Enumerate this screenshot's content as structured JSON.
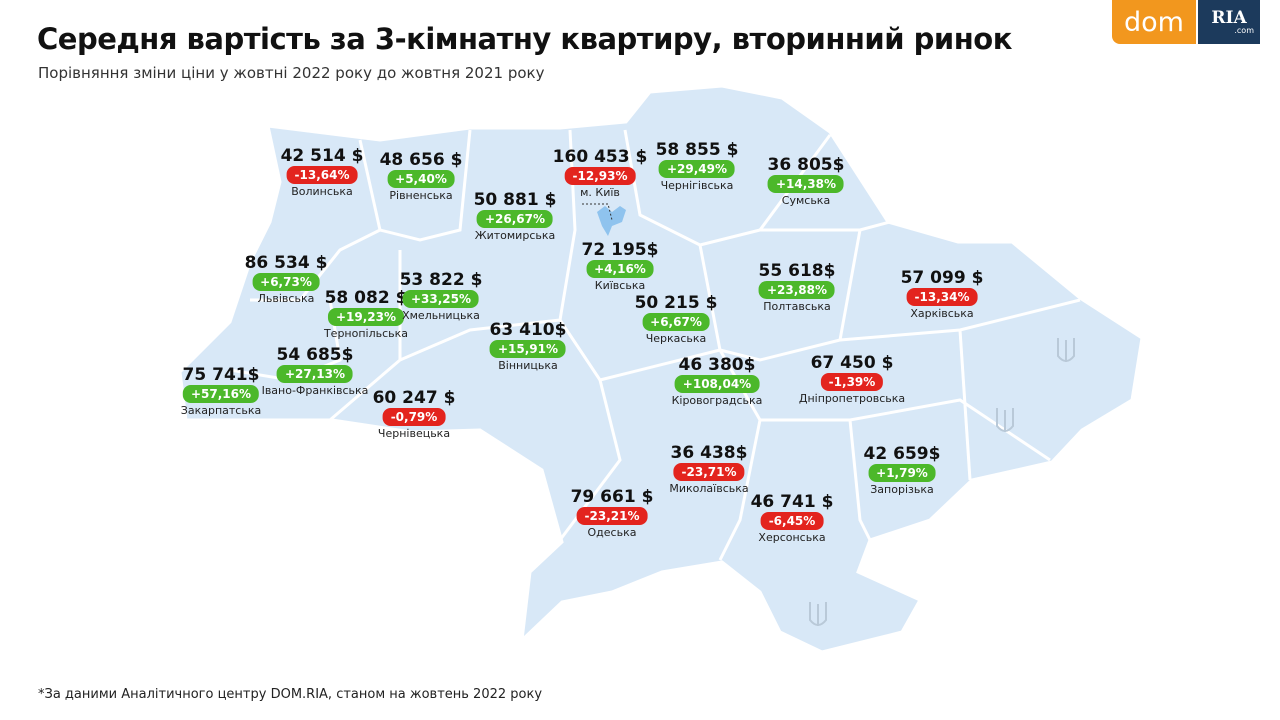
{
  "header": {
    "title": "Середня вартість за 3-кімнатну квартиру, вторинний ринок",
    "subtitle": "Порівняння зміни ціни у жовтні 2022 року до жовтня 2021 року"
  },
  "logo": {
    "left": "dom",
    "right": "RIA",
    "domain": ".com"
  },
  "footnote": "*За даними Аналітичного центру DOM.RIA, станом на жовтень 2022 року",
  "colors": {
    "map_fill": "#d8e8f7",
    "map_border": "#ffffff",
    "increase": "#4cb82a",
    "decrease": "#e3241e",
    "kyiv_city": "#8fc3ee"
  },
  "regions": [
    {
      "name": "Волинська",
      "price": "42 514 $",
      "change": "-13,64%",
      "trend": "down"
    },
    {
      "name": "Рівненська",
      "price": "48 656 $",
      "change": "+5,40%",
      "trend": "up"
    },
    {
      "name": "Житомирська",
      "price": "50 881 $",
      "change": "+26,67%",
      "trend": "up"
    },
    {
      "name": "м. Київ",
      "price": "160 453 $",
      "change": "-12,93%",
      "trend": "down"
    },
    {
      "name": "Чернігівська",
      "price": "58 855 $",
      "change": "+29,49%",
      "trend": "up"
    },
    {
      "name": "Сумська",
      "price": "36 805$",
      "change": "+14,38%",
      "trend": "up"
    },
    {
      "name": "Львівська",
      "price": "86 534 $",
      "change": "+6,73%",
      "trend": "up"
    },
    {
      "name": "Тернопільська",
      "price": "58 082 $",
      "change": "+19,23%",
      "trend": "up"
    },
    {
      "name": "Хмельницька",
      "price": "53 822 $",
      "change": "+33,25%",
      "trend": "up"
    },
    {
      "name": "Київська",
      "price": "72 195$",
      "change": "+4,16%",
      "trend": "up"
    },
    {
      "name": "Черкаська",
      "price": "50 215 $",
      "change": "+6,67%",
      "trend": "up"
    },
    {
      "name": "Полтавська",
      "price": "55 618$",
      "change": "+23,88%",
      "trend": "up"
    },
    {
      "name": "Харківська",
      "price": "57 099 $",
      "change": "-13,34%",
      "trend": "down"
    },
    {
      "name": "Вінницька",
      "price": "63 410$",
      "change": "+15,91%",
      "trend": "up"
    },
    {
      "name": "Закарпатська",
      "price": "75 741$",
      "change": "+57,16%",
      "trend": "up"
    },
    {
      "name": "Івано-Франківська",
      "price": "54 685$",
      "change": "+27,13%",
      "trend": "up"
    },
    {
      "name": "Чернівецька",
      "price": "60 247 $",
      "change": "-0,79%",
      "trend": "down"
    },
    {
      "name": "Кіровоградська",
      "price": "46 380$",
      "change": "+108,04%",
      "trend": "up"
    },
    {
      "name": "Дніпропетровська",
      "price": "67 450 $",
      "change": "-1,39%",
      "trend": "down"
    },
    {
      "name": "Миколаївська",
      "price": "36 438$",
      "change": "-23,71%",
      "trend": "down"
    },
    {
      "name": "Запорізька",
      "price": "42 659$",
      "change": "+1,79%",
      "trend": "up"
    },
    {
      "name": "Одеська",
      "price": "79 661 $",
      "change": "-23,21%",
      "trend": "down"
    },
    {
      "name": "Херсонська",
      "price": "46 741 $",
      "change": "-6,45%",
      "trend": "down"
    }
  ]
}
